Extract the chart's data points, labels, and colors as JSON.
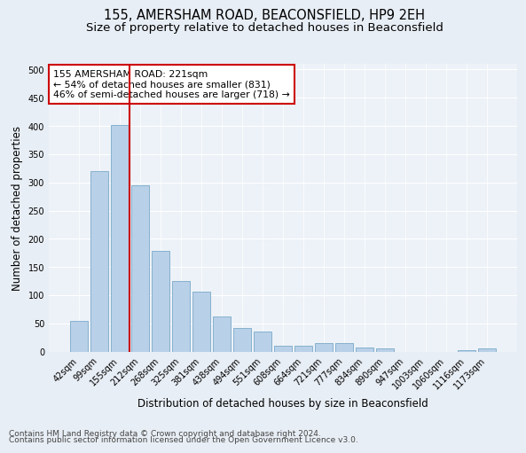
{
  "title": "155, AMERSHAM ROAD, BEACONSFIELD, HP9 2EH",
  "subtitle": "Size of property relative to detached houses in Beaconsfield",
  "xlabel": "Distribution of detached houses by size in Beaconsfield",
  "ylabel": "Number of detached properties",
  "categories": [
    "42sqm",
    "99sqm",
    "155sqm",
    "212sqm",
    "268sqm",
    "325sqm",
    "381sqm",
    "438sqm",
    "494sqm",
    "551sqm",
    "608sqm",
    "664sqm",
    "721sqm",
    "777sqm",
    "834sqm",
    "890sqm",
    "947sqm",
    "1003sqm",
    "1060sqm",
    "1116sqm",
    "1173sqm"
  ],
  "values": [
    55,
    320,
    402,
    295,
    178,
    125,
    107,
    63,
    42,
    36,
    10,
    10,
    15,
    15,
    8,
    5,
    0,
    0,
    0,
    3,
    5
  ],
  "bar_color": "#b8d0e8",
  "bar_edge_color": "#7aaac8",
  "vline_color": "#cc0000",
  "annotation_text": "155 AMERSHAM ROAD: 221sqm\n← 54% of detached houses are smaller (831)\n46% of semi-detached houses are larger (718) →",
  "annotation_box_color": "#ffffff",
  "annotation_box_edge": "#cc0000",
  "ylim": [
    0,
    510
  ],
  "yticks": [
    0,
    50,
    100,
    150,
    200,
    250,
    300,
    350,
    400,
    450,
    500
  ],
  "footer1": "Contains HM Land Registry data © Crown copyright and database right 2024.",
  "footer2": "Contains public sector information licensed under the Open Government Licence v3.0.",
  "background_color": "#e8eef5",
  "plot_bg_color": "#edf2f8",
  "grid_color": "#ffffff",
  "title_fontsize": 10.5,
  "subtitle_fontsize": 9.5,
  "axis_label_fontsize": 8.5,
  "tick_fontsize": 7,
  "annotation_fontsize": 7.8,
  "footer_fontsize": 6.5
}
